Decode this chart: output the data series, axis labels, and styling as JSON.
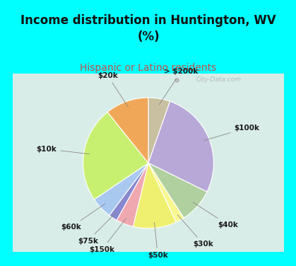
{
  "title": "Income distribution in Huntington, WV\n(%)",
  "subtitle": "Hispanic or Latino residents",
  "labels": [
    "> $200k",
    "$100k",
    "$40k",
    "$30k",
    "$50k",
    "$150k",
    "$75k",
    "$60k",
    "$10k",
    "$20k"
  ],
  "values": [
    5,
    25,
    8,
    2,
    10,
    4,
    2,
    5,
    22,
    10
  ],
  "colors": [
    "#c8c0a0",
    "#b8a8d8",
    "#b0d0a0",
    "#f8f890",
    "#f0f070",
    "#f0a8b0",
    "#8888d0",
    "#a8c8f0",
    "#c8f070",
    "#f0a858"
  ],
  "bg_top": "#00ffff",
  "bg_chart_color": "#d8ede8",
  "startangle": 90,
  "label_fontsize": 7.5,
  "title_fontsize": 12,
  "subtitle_fontsize": 10,
  "subtitle_color": "#c05050",
  "watermark": "City-Data.com"
}
